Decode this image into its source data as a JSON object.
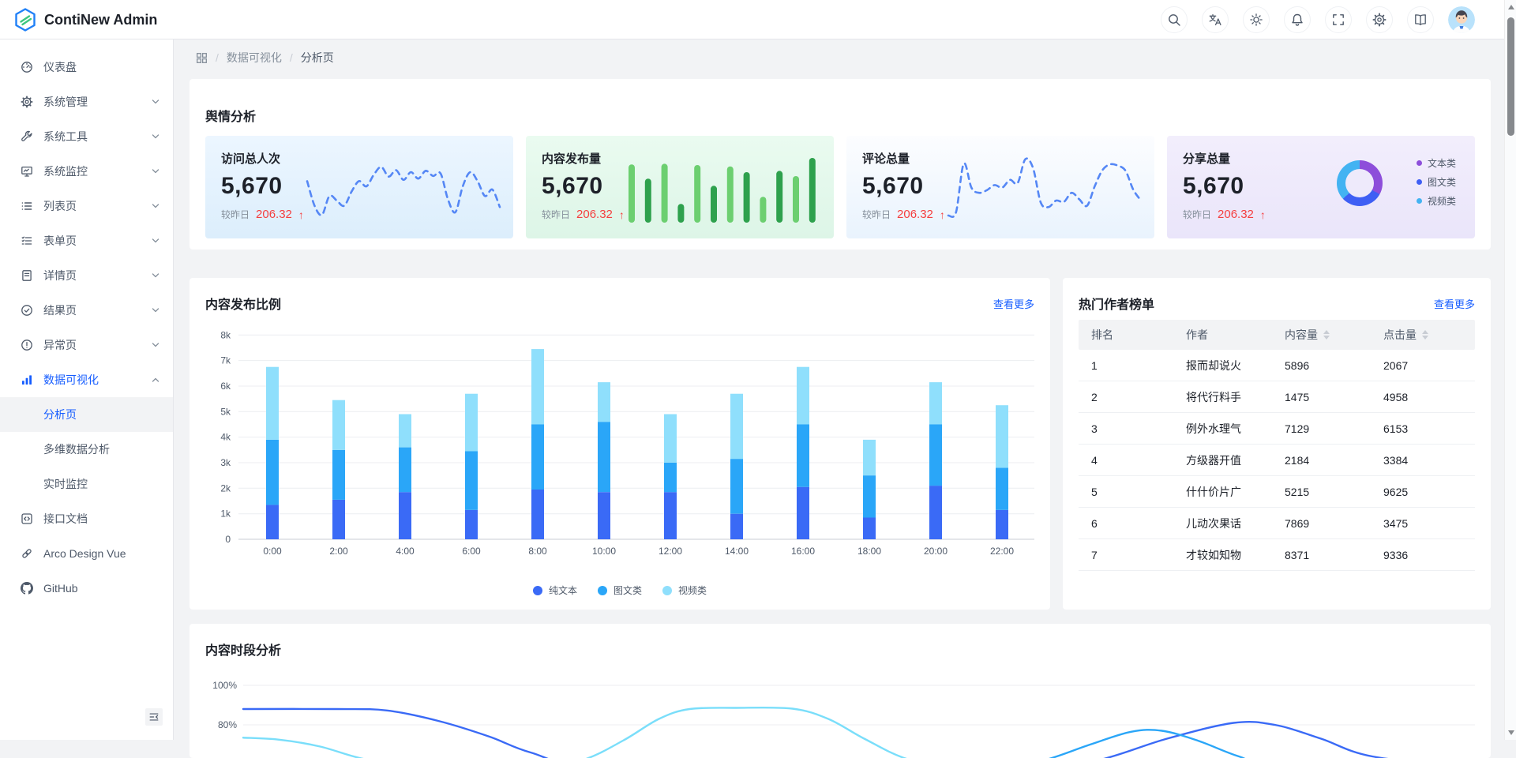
{
  "colors": {
    "primary": "#165dff",
    "danger": "#f53f3f",
    "text": "#1d2129",
    "muted": "#86909c",
    "border": "#e5e6eb"
  },
  "header": {
    "app_title": "ContiNew Admin",
    "icons": [
      {
        "name": "search-icon"
      },
      {
        "name": "translate-icon"
      },
      {
        "name": "theme-icon"
      },
      {
        "name": "notification-icon"
      },
      {
        "name": "fullscreen-icon"
      },
      {
        "name": "settings-icon"
      },
      {
        "name": "docs-icon"
      }
    ]
  },
  "breadcrumb": {
    "separator": "/",
    "section": "数据可视化",
    "page": "分析页"
  },
  "sidebar": {
    "items": [
      {
        "key": "dashboard",
        "icon": "dashboard-icon",
        "label": "仪表盘"
      },
      {
        "key": "system-management",
        "icon": "gear-icon",
        "label": "系统管理",
        "chevron": "down"
      },
      {
        "key": "system-tools",
        "icon": "wrench-icon",
        "label": "系统工具",
        "chevron": "down"
      },
      {
        "key": "system-monitor",
        "icon": "monitor-icon",
        "label": "系统监控",
        "chevron": "down"
      },
      {
        "key": "list-page",
        "icon": "list-icon",
        "label": "列表页",
        "chevron": "down"
      },
      {
        "key": "form-page",
        "icon": "form-icon",
        "label": "表单页",
        "chevron": "down"
      },
      {
        "key": "detail-page",
        "icon": "document-icon",
        "label": "详情页",
        "chevron": "down"
      },
      {
        "key": "result-page",
        "icon": "check-circle-icon",
        "label": "结果页",
        "chevron": "down"
      },
      {
        "key": "exception-page",
        "icon": "exclamation-circle-icon",
        "label": "异常页",
        "chevron": "down"
      },
      {
        "key": "data-visualization",
        "icon": "bar-chart-icon",
        "label": "数据可视化",
        "chevron": "up",
        "active": true,
        "children": [
          {
            "key": "analysis-page",
            "label": "分析页",
            "active": true
          },
          {
            "key": "multi-dimension-analysis",
            "label": "多维数据分析"
          },
          {
            "key": "realtime-monitor",
            "label": "实时监控"
          }
        ]
      },
      {
        "key": "api-docs",
        "icon": "code-square-icon",
        "label": "接口文档"
      },
      {
        "key": "arco-design-vue",
        "icon": "link-icon",
        "label": "Arco Design Vue"
      },
      {
        "key": "github",
        "icon": "github-icon",
        "label": "GitHub"
      }
    ]
  },
  "overview": {
    "section_title": "舆情分析",
    "cards": [
      {
        "title": "访问总人次",
        "value": "5,670",
        "compare_label": "较昨日",
        "compare_value": "206.32",
        "arrow": "↑",
        "bg": [
          "#ecf6ff",
          "#dceefc"
        ],
        "chart": {
          "type": "dashed-line",
          "color": "#5587f5",
          "values": [
            0.58,
            0.2,
            0.06,
            0.35,
            0.28,
            0.2,
            0.42,
            0.58,
            0.5,
            0.68,
            0.8,
            0.65,
            0.75,
            0.6,
            0.72,
            0.62,
            0.74,
            0.66,
            0.7,
            0.3,
            0.1,
            0.5,
            0.72,
            0.58,
            0.35,
            0.45,
            0.18
          ]
        }
      },
      {
        "title": "内容发布量",
        "value": "5,670",
        "compare_label": "较昨日",
        "compare_value": "206.32",
        "arrow": "↑",
        "bg": [
          "#eafbf0",
          "#ddf5e7"
        ],
        "chart": {
          "type": "bars",
          "colors": [
            "#6ccf70",
            "#2ea14d"
          ],
          "values": [
            0.9,
            0.68,
            0.91,
            0.29,
            0.89,
            0.57,
            0.87,
            0.78,
            0.4,
            0.8,
            0.72,
            1.0
          ]
        }
      },
      {
        "title": "评论总量",
        "value": "5,670",
        "compare_label": "较昨日",
        "compare_value": "206.32",
        "arrow": "↑",
        "bg": [
          "#fcfdff",
          "#e9f3fd"
        ],
        "chart": {
          "type": "dashed-line",
          "color": "#5587f5",
          "values": [
            0.05,
            0.1,
            0.85,
            0.48,
            0.4,
            0.44,
            0.52,
            0.48,
            0.6,
            0.55,
            0.92,
            0.78,
            0.25,
            0.18,
            0.28,
            0.26,
            0.4,
            0.3,
            0.2,
            0.5,
            0.75,
            0.84,
            0.82,
            0.74,
            0.45,
            0.28
          ]
        }
      },
      {
        "title": "分享总量",
        "value": "5,670",
        "compare_label": "较昨日",
        "compare_value": "206.32",
        "arrow": "↑",
        "bg": [
          "#f2eefc",
          "#eae5fa"
        ],
        "chart": {
          "type": "donut",
          "slices": [
            {
              "label": "文本类",
              "value": 33,
              "color": "#8d4eda"
            },
            {
              "label": "图文类",
              "value": 30,
              "color": "#3e5ff4"
            },
            {
              "label": "视频类",
              "value": 37,
              "color": "#43b3f2"
            }
          ]
        }
      }
    ]
  },
  "publish": {
    "title": "内容发布比例",
    "more_label": "查看更多"
  },
  "authors": {
    "title": "热门作者榜单",
    "more_label": "查看更多",
    "columns": [
      {
        "label": "排名",
        "sortable": false
      },
      {
        "label": "作者",
        "sortable": false
      },
      {
        "label": "内容量",
        "sortable": true
      },
      {
        "label": "点击量",
        "sortable": true
      }
    ],
    "rows": [
      [
        "1",
        "报而却说火",
        "5896",
        "2067"
      ],
      [
        "2",
        "将代行料手",
        "1475",
        "4958"
      ],
      [
        "3",
        "例外水理气",
        "7129",
        "6153"
      ],
      [
        "4",
        "方级器开值",
        "2184",
        "3384"
      ],
      [
        "5",
        "什什价片广",
        "5215",
        "9625"
      ],
      [
        "6",
        "儿动次果话",
        "7869",
        "3475"
      ],
      [
        "7",
        "才较如知物",
        "8371",
        "9336"
      ]
    ]
  },
  "time": {
    "title": "内容时段分析"
  },
  "chart_data": [
    {
      "id": "publish-ratio",
      "type": "bar",
      "stacked": true,
      "title": "内容发布比例",
      "categories": [
        "0:00",
        "2:00",
        "4:00",
        "6:00",
        "8:00",
        "10:00",
        "12:00",
        "14:00",
        "16:00",
        "18:00",
        "20:00",
        "22:00"
      ],
      "series": [
        {
          "name": "纯文本",
          "color": "#3a6af6",
          "values": [
            1350,
            1550,
            1850,
            1150,
            1950,
            1850,
            1850,
            1000,
            2050,
            850,
            2100,
            1150
          ]
        },
        {
          "name": "图文类",
          "color": "#2aa6f8",
          "values": [
            2550,
            1950,
            1750,
            2300,
            2550,
            2750,
            1150,
            2150,
            2450,
            1650,
            2400,
            1650
          ]
        },
        {
          "name": "视频类",
          "color": "#8fdffc",
          "values": [
            2850,
            1950,
            1300,
            2250,
            2950,
            1550,
            1900,
            2550,
            2250,
            1400,
            1650,
            2450
          ]
        }
      ],
      "ylim": [
        0,
        8000
      ],
      "ytick_labels": [
        "0",
        "1k",
        "2k",
        "3k",
        "4k",
        "5k",
        "6k",
        "7k",
        "8k"
      ],
      "legend_position": "bottom",
      "grid": true
    },
    {
      "id": "time-analysis",
      "type": "line",
      "title": "内容时段分析",
      "visible_ytick_labels": [
        "100%",
        "80%"
      ],
      "x_unit": "hour",
      "y_unit": "percent",
      "series": [
        {
          "name": "纯文本",
          "color": "#3a6af6",
          "points": [
            [
              0,
              88
            ],
            [
              1.8,
              88
            ],
            [
              2.8,
              87.3
            ],
            [
              3.8,
              82
            ],
            [
              4.8,
              74
            ],
            [
              5.6,
              66
            ],
            [
              7,
              58
            ],
            [
              12,
              52
            ],
            [
              15.5,
              56
            ],
            [
              16.8,
              63
            ],
            [
              18,
              73
            ],
            [
              19.3,
              81
            ],
            [
              20.1,
              80
            ],
            [
              21,
              73
            ],
            [
              22,
              64
            ],
            [
              24,
              58
            ]
          ]
        },
        {
          "name": "图文类",
          "color": "#2aa6f8",
          "points": [
            [
              0,
              58
            ],
            [
              14.5,
              56
            ],
            [
              15.6,
              62
            ],
            [
              16.5,
              70
            ],
            [
              17.3,
              76.5
            ],
            [
              17.9,
              77
            ],
            [
              18.6,
              72
            ],
            [
              19.4,
              64
            ],
            [
              20.3,
              58
            ],
            [
              24,
              54
            ]
          ]
        },
        {
          "name": "视频类",
          "color": "#7adefa",
          "points": [
            [
              0,
              73.5
            ],
            [
              0.7,
              72.5
            ],
            [
              1.5,
              69
            ],
            [
              2.3,
              63
            ],
            [
              3.5,
              57
            ],
            [
              5.5,
              56
            ],
            [
              6.6,
              62
            ],
            [
              7.4,
              72
            ],
            [
              8.1,
              83
            ],
            [
              8.7,
              88
            ],
            [
              9.6,
              88.6
            ],
            [
              10.7,
              88.2
            ],
            [
              11.4,
              83
            ],
            [
              12.1,
              73
            ],
            [
              12.9,
              63
            ],
            [
              14,
              56
            ],
            [
              24,
              52
            ]
          ]
        }
      ]
    }
  ]
}
